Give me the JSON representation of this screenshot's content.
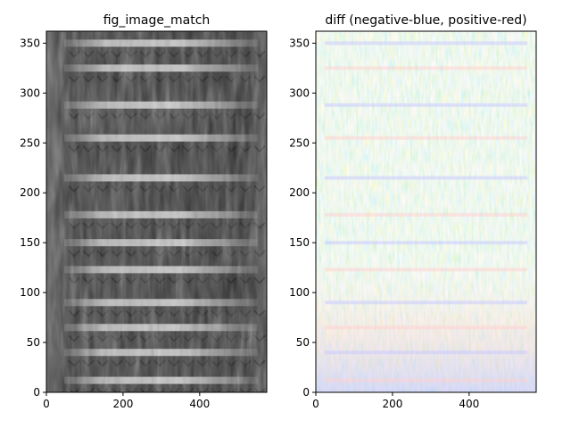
{
  "chart_data": [
    {
      "type": "heatmap",
      "title": "fig_image_match",
      "colormap": "gray",
      "xlim": [
        0,
        575
      ],
      "ylim": [
        0,
        362
      ],
      "x_ticks": [
        0,
        200,
        400
      ],
      "y_ticks": [
        0,
        50,
        100,
        150,
        200,
        250,
        300,
        350
      ],
      "bright_band_rows": [
        12,
        40,
        65,
        90,
        123,
        150,
        178,
        215,
        255,
        288,
        325,
        350
      ],
      "grid": false
    },
    {
      "type": "heatmap",
      "title": "diff (negative-blue, positive-red)",
      "colormap": "bwr",
      "xlim": [
        0,
        575
      ],
      "ylim": [
        0,
        362
      ],
      "x_ticks": [
        0,
        200,
        400
      ],
      "y_ticks": [
        0,
        50,
        100,
        150,
        200,
        250,
        300,
        350
      ],
      "grid": false
    }
  ],
  "colors": {
    "negative": "#3b4cc0",
    "positive": "#d73027",
    "axes": "#000000"
  }
}
